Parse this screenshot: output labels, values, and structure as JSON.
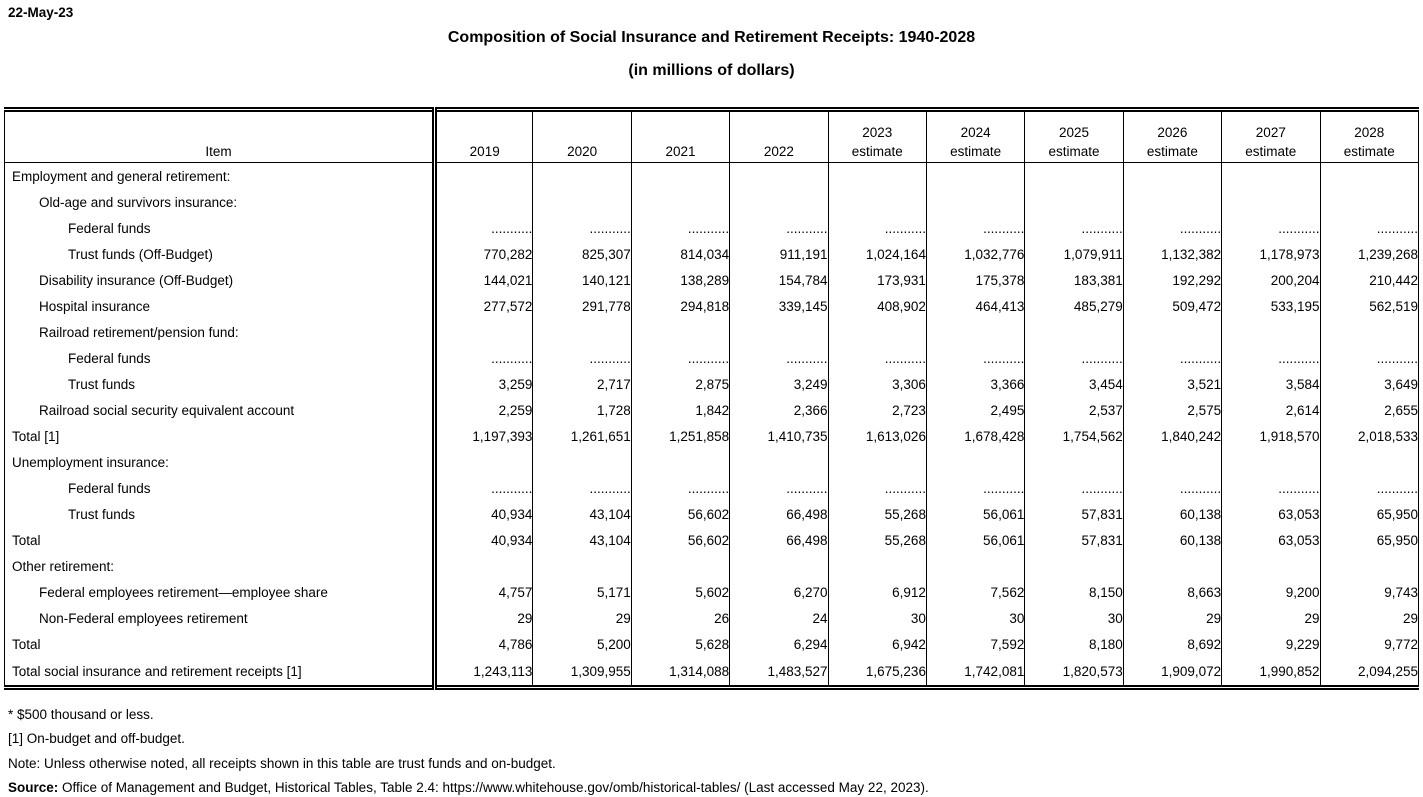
{
  "page": {
    "date": "22-May-23",
    "title": "Composition of Social Insurance and Retirement Receipts: 1940-2028",
    "subtitle": "(in millions of dollars)"
  },
  "table": {
    "item_header": "Item",
    "columns": [
      {
        "label": "2019",
        "sub": ""
      },
      {
        "label": "2020",
        "sub": ""
      },
      {
        "label": "2021",
        "sub": ""
      },
      {
        "label": "2022",
        "sub": ""
      },
      {
        "label": "2023",
        "sub": "estimate"
      },
      {
        "label": "2024",
        "sub": "estimate"
      },
      {
        "label": "2025",
        "sub": "estimate"
      },
      {
        "label": "2026",
        "sub": "estimate"
      },
      {
        "label": "2027",
        "sub": "estimate"
      },
      {
        "label": "2028",
        "sub": "estimate"
      }
    ],
    "rows": [
      {
        "label": "",
        "indent": 0,
        "values": [
          "",
          "",
          "",
          "",
          "",
          "",
          "",
          "",
          "",
          ""
        ]
      },
      {
        "label": "Employment and general retirement:",
        "indent": 0,
        "values": [
          "",
          "",
          "",
          "",
          "",
          "",
          "",
          "",
          "",
          ""
        ]
      },
      {
        "label": "Old-age and survivors insurance:",
        "indent": 1,
        "values": [
          "",
          "",
          "",
          "",
          "",
          "",
          "",
          "",
          "",
          ""
        ]
      },
      {
        "label": "Federal funds",
        "indent": 2,
        "values": [
          "...........",
          "...........",
          "...........",
          "...........",
          "...........",
          "...........",
          "...........",
          "...........",
          "...........",
          "..........."
        ]
      },
      {
        "label": "Trust funds (Off-Budget)",
        "indent": 2,
        "values": [
          "770,282",
          "825,307",
          "814,034",
          "911,191",
          "1,024,164",
          "1,032,776",
          "1,079,911",
          "1,132,382",
          "1,178,973",
          "1,239,268"
        ]
      },
      {
        "label": "Disability insurance (Off-Budget)",
        "indent": 1,
        "values": [
          "144,021",
          "140,121",
          "138,289",
          "154,784",
          "173,931",
          "175,378",
          "183,381",
          "192,292",
          "200,204",
          "210,442"
        ]
      },
      {
        "label": "Hospital insurance",
        "indent": 1,
        "values": [
          "277,572",
          "291,778",
          "294,818",
          "339,145",
          "408,902",
          "464,413",
          "485,279",
          "509,472",
          "533,195",
          "562,519"
        ]
      },
      {
        "label": "Railroad retirement/pension fund:",
        "indent": 1,
        "values": [
          "",
          "",
          "",
          "",
          "",
          "",
          "",
          "",
          "",
          ""
        ]
      },
      {
        "label": "Federal funds",
        "indent": 2,
        "values": [
          "...........",
          "...........",
          "...........",
          "...........",
          "...........",
          "...........",
          "...........",
          "...........",
          "...........",
          "..........."
        ]
      },
      {
        "label": "Trust funds",
        "indent": 2,
        "values": [
          "3,259",
          "2,717",
          "2,875",
          "3,249",
          "3,306",
          "3,366",
          "3,454",
          "3,521",
          "3,584",
          "3,649"
        ]
      },
      {
        "label": "Railroad social security equivalent account",
        "indent": 1,
        "values": [
          "2,259",
          "1,728",
          "1,842",
          "2,366",
          "2,723",
          "2,495",
          "2,537",
          "2,575",
          "2,614",
          "2,655"
        ]
      },
      {
        "label": "Total [1]",
        "indent": 0,
        "values": [
          "1,197,393",
          "1,261,651",
          "1,251,858",
          "1,410,735",
          "1,613,026",
          "1,678,428",
          "1,754,562",
          "1,840,242",
          "1,918,570",
          "2,018,533"
        ]
      },
      {
        "label": "",
        "indent": 0,
        "values": [
          "",
          "",
          "",
          "",
          "",
          "",
          "",
          "",
          "",
          ""
        ]
      },
      {
        "label": "Unemployment insurance:",
        "indent": 0,
        "values": [
          "",
          "",
          "",
          "",
          "",
          "",
          "",
          "",
          "",
          ""
        ]
      },
      {
        "label": "Federal funds",
        "indent": 2,
        "values": [
          "...........",
          "...........",
          "...........",
          "...........",
          "...........",
          "...........",
          "...........",
          "...........",
          "...........",
          "..........."
        ]
      },
      {
        "label": "Trust funds",
        "indent": 2,
        "values": [
          "40,934",
          "43,104",
          "56,602",
          "66,498",
          "55,268",
          "56,061",
          "57,831",
          "60,138",
          "63,053",
          "65,950"
        ]
      },
      {
        "label": "Total",
        "indent": 0,
        "values": [
          "40,934",
          "43,104",
          "56,602",
          "66,498",
          "55,268",
          "56,061",
          "57,831",
          "60,138",
          "63,053",
          "65,950"
        ]
      },
      {
        "label": "",
        "indent": 0,
        "values": [
          "",
          "",
          "",
          "",
          "",
          "",
          "",
          "",
          "",
          ""
        ]
      },
      {
        "label": "Other retirement:",
        "indent": 0,
        "values": [
          "",
          "",
          "",
          "",
          "",
          "",
          "",
          "",
          "",
          ""
        ]
      },
      {
        "label": "Federal employees retirement—employee share",
        "indent": 1,
        "values": [
          "4,757",
          "5,171",
          "5,602",
          "6,270",
          "6,912",
          "7,562",
          "8,150",
          "8,663",
          "9,200",
          "9,743"
        ]
      },
      {
        "label": "Non-Federal employees retirement",
        "indent": 1,
        "values": [
          "29",
          "29",
          "26",
          "24",
          "30",
          "30",
          "30",
          "29",
          "29",
          "29"
        ]
      },
      {
        "label": "Total",
        "indent": 0,
        "values": [
          "4,786",
          "5,200",
          "5,628",
          "6,294",
          "6,942",
          "7,592",
          "8,180",
          "8,692",
          "9,229",
          "9,772"
        ]
      },
      {
        "label": "",
        "indent": 0,
        "values": [
          "",
          "",
          "",
          "",
          "",
          "",
          "",
          "",
          "",
          ""
        ]
      },
      {
        "label": "Total social insurance and retirement receipts [1]",
        "indent": 0,
        "values": [
          "1,243,113",
          "1,309,955",
          "1,314,088",
          "1,483,527",
          "1,675,236",
          "1,742,081",
          "1,820,573",
          "1,909,072",
          "1,990,852",
          "2,094,255"
        ]
      }
    ]
  },
  "footnotes": {
    "asterisk": "* $500 thousand or less.",
    "bracket1": "[1] On-budget and off-budget.",
    "note": "Note: Unless otherwise noted, all receipts shown in this table are trust funds and on-budget.",
    "source_label": "Source:",
    "source_text": " Office of Management and Budget, Historical Tables, Table 2.4: https://www.whitehouse.gov/omb/historical-tables/ (Last accessed May 22, 2023)."
  }
}
